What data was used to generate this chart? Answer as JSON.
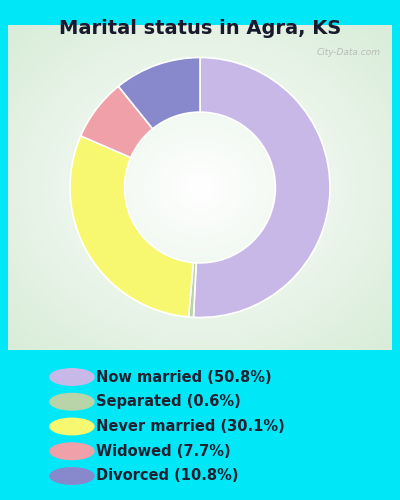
{
  "title": "Marital status in Agra, KS",
  "slices": [
    {
      "label": "Now married (50.8%)",
      "value": 50.8,
      "color": "#c8b8e8"
    },
    {
      "label": "Separated (0.6%)",
      "value": 0.6,
      "color": "#b8d4a8"
    },
    {
      "label": "Never married (30.1%)",
      "value": 30.1,
      "color": "#f8f870"
    },
    {
      "label": "Widowed (7.7%)",
      "value": 7.7,
      "color": "#f0a0a8"
    },
    {
      "label": "Divorced (10.8%)",
      "value": 10.8,
      "color": "#8888cc"
    }
  ],
  "background_cyan": "#00e8f8",
  "chart_panel_color": "#e8f0e0",
  "title_color": "#1a1a2e",
  "legend_text_color": "#202030",
  "title_fontsize": 14,
  "legend_fontsize": 10.5,
  "donut_width": 0.42,
  "start_angle": 90,
  "watermark": "City-Data.com"
}
